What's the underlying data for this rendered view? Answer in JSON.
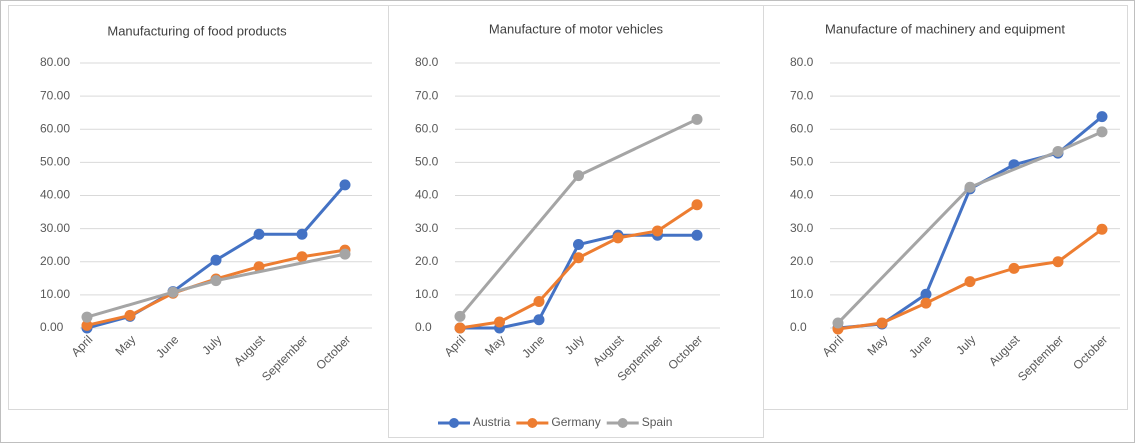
{
  "chart_data": [
    {
      "type": "line",
      "title": "Manufacturing of food products",
      "categories": [
        "April",
        "May",
        "June",
        "July",
        "August",
        "September",
        "October"
      ],
      "series": [
        {
          "name": "Austria",
          "color": "#4472c4",
          "values": [
            0,
            3.5,
            11,
            20.5,
            28.3,
            28.3,
            43.2
          ]
        },
        {
          "name": "Germany",
          "color": "#ed7d31",
          "values": [
            0.8,
            3.8,
            10.5,
            14.8,
            18.5,
            21.5,
            23.5
          ]
        },
        {
          "name": "Spain",
          "color": "#a5a5a5",
          "values": [
            3.3,
            null,
            10.8,
            14.3,
            null,
            null,
            22.3
          ]
        }
      ],
      "ylim": [
        0,
        80
      ],
      "yticks": [
        {
          "value": 0,
          "label": "0.00"
        },
        {
          "value": 10,
          "label": "10.00"
        },
        {
          "value": 20,
          "label": "20.00"
        },
        {
          "value": 30,
          "label": "30.00"
        },
        {
          "value": 40,
          "label": "40.00"
        },
        {
          "value": 50,
          "label": "50.00"
        },
        {
          "value": 60,
          "label": "60.00"
        },
        {
          "value": 70,
          "label": "70.00"
        },
        {
          "value": 80,
          "label": "80.00"
        }
      ],
      "grid": true,
      "connect_gaps": true
    },
    {
      "type": "line",
      "title": "Manufacture of motor vehicles",
      "categories": [
        "April",
        "May",
        "June",
        "July",
        "August",
        "September",
        "October"
      ],
      "series": [
        {
          "name": "Austria",
          "color": "#4472c4",
          "values": [
            0,
            0,
            2.5,
            25.2,
            28,
            28,
            28
          ]
        },
        {
          "name": "Germany",
          "color": "#ed7d31",
          "values": [
            0,
            1.8,
            8,
            21.2,
            27.2,
            29.3,
            37.2
          ]
        },
        {
          "name": "Spain",
          "color": "#a5a5a5",
          "values": [
            3.5,
            null,
            null,
            46,
            null,
            null,
            63
          ]
        }
      ],
      "ylim": [
        0,
        80
      ],
      "yticks": [
        {
          "value": 0,
          "label": "0.0"
        },
        {
          "value": 10,
          "label": "10.0"
        },
        {
          "value": 20,
          "label": "20.0"
        },
        {
          "value": 30,
          "label": "30.0"
        },
        {
          "value": 40,
          "label": "40.0"
        },
        {
          "value": 50,
          "label": "50.0"
        },
        {
          "value": 60,
          "label": "60.0"
        },
        {
          "value": 70,
          "label": "70.0"
        },
        {
          "value": 80,
          "label": "80.0"
        }
      ],
      "grid": true,
      "connect_gaps": true,
      "legend": "bottom"
    },
    {
      "type": "line",
      "title": "Manufacture of machinery and equipment",
      "categories": [
        "April",
        "May",
        "June",
        "July",
        "August",
        "September",
        "October"
      ],
      "series": [
        {
          "name": "Austria",
          "color": "#4472c4",
          "values": [
            0,
            1.2,
            10.2,
            42,
            49.3,
            52.8,
            63.8
          ]
        },
        {
          "name": "Germany",
          "color": "#ed7d31",
          "values": [
            -0.3,
            1.5,
            7.5,
            14,
            18,
            20,
            29.8
          ]
        },
        {
          "name": "Spain",
          "color": "#a5a5a5",
          "values": [
            1.5,
            null,
            null,
            42.5,
            null,
            53.3,
            59.2
          ]
        }
      ],
      "ylim": [
        0,
        80
      ],
      "yticks": [
        {
          "value": 0,
          "label": "0.0"
        },
        {
          "value": 10,
          "label": "10.0"
        },
        {
          "value": 20,
          "label": "20.0"
        },
        {
          "value": 30,
          "label": "30.0"
        },
        {
          "value": 40,
          "label": "40.0"
        },
        {
          "value": 50,
          "label": "50.0"
        },
        {
          "value": 60,
          "label": "60.0"
        },
        {
          "value": 70,
          "label": "70.0"
        },
        {
          "value": 80,
          "label": "80.0"
        }
      ],
      "grid": true,
      "connect_gaps": true
    }
  ]
}
